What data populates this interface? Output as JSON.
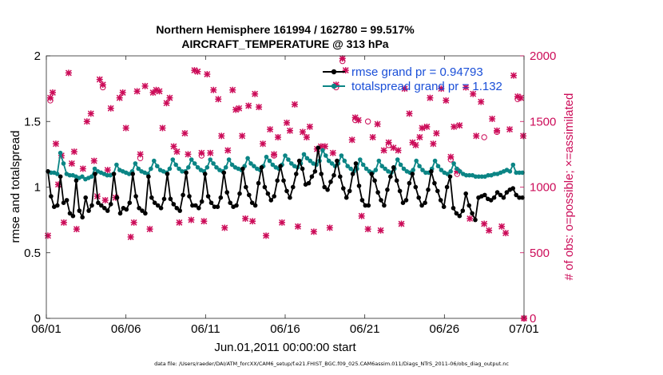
{
  "chart_data": {
    "type": "line",
    "title": "Northern Hemisphere 161994 / 162780 = 99.517%",
    "subtitle": "AIRCRAFT_TEMPERATURE @ 313 hPa",
    "xlabel": "Jun.01,2011 00:00:00 start",
    "ylabel": "rmse and totalspread",
    "y2label": "# of obs: o=possible; ×=assimilated",
    "xlim": [
      0,
      30
    ],
    "ylim": [
      0,
      2
    ],
    "y2lim": [
      0,
      2000
    ],
    "xticks": [
      0,
      5,
      10,
      15,
      20,
      25,
      30
    ],
    "xticklabels": [
      "06/01",
      "06/06",
      "06/11",
      "06/16",
      "06/21",
      "06/26",
      "07/01"
    ],
    "yticks": [
      0,
      0.5,
      1,
      1.5,
      2
    ],
    "yticklabels": [
      "0",
      "0.5",
      "1",
      "1.5",
      "2"
    ],
    "y2ticks": [
      0,
      500,
      1000,
      1500,
      2000
    ],
    "y2ticklabels": [
      "0",
      "500",
      "1000",
      "1500",
      "2000"
    ],
    "colors": {
      "rmse": "#000000",
      "spread": "#0b8585",
      "obs": "#cc0c59",
      "legend_text": "#1a4fd8"
    },
    "series": [
      {
        "name": "rmse grand pr = 0.94793",
        "axis": "left",
        "values": [
          1.12,
          0.93,
          0.85,
          0.86,
          1.08,
          0.88,
          0.9,
          0.8,
          0.78,
          1.05,
          0.82,
          0.77,
          0.92,
          0.82,
          0.86,
          1.1,
          0.88,
          0.86,
          0.84,
          0.82,
          0.87,
          1.1,
          0.92,
          0.8,
          0.84,
          0.83,
          0.88,
          1.1,
          0.93,
          0.84,
          0.82,
          0.8,
          1.08,
          0.92,
          0.88,
          0.86,
          0.84,
          0.91,
          1.1,
          0.91,
          0.87,
          0.84,
          0.82,
          0.94,
          1.11,
          0.93,
          0.86,
          0.86,
          0.84,
          0.89,
          1.1,
          0.93,
          0.88,
          0.85,
          0.85,
          0.92,
          1.11,
          0.96,
          0.88,
          0.85,
          0.86,
          0.95,
          1.14,
          1.0,
          0.94,
          0.88,
          0.86,
          1.03,
          1.15,
          1.0,
          0.95,
          0.9,
          0.93,
          1.05,
          1.16,
          1.05,
          0.97,
          0.92,
          1.0,
          1.1,
          1.2,
          1.14,
          1.02,
          1.03,
          1.08,
          1.12,
          1.3,
          1.1,
          1.0,
          0.98,
          1.04,
          1.09,
          1.2,
          1.08,
          0.99,
          0.92,
          0.97,
          1.1,
          1.18,
          1.01,
          0.9,
          0.86,
          0.86,
          1.1,
          1.05,
          0.96,
          0.9,
          0.86,
          0.98,
          1.08,
          1.15,
          1.05,
          0.97,
          0.88,
          0.9,
          1.03,
          1.1,
          1.0,
          0.92,
          0.86,
          0.88,
          0.98,
          1.12,
          1.03,
          0.97,
          0.9,
          0.85,
          1.0,
          1.08,
          0.84,
          0.8,
          0.78,
          0.82,
          0.95,
          0.86,
          0.8,
          0.75,
          0.92,
          0.93,
          0.94,
          0.91,
          0.9,
          0.92,
          0.96,
          0.94,
          0.92,
          0.96,
          0.98,
          0.99,
          0.94,
          0.92,
          0.92
        ]
      },
      {
        "name": "totalspread grand pr = 1.132",
        "axis": "left",
        "values": [
          1.12,
          1.11,
          1.11,
          1.1,
          1.26,
          1.18,
          1.1,
          1.09,
          1.09,
          1.08,
          1.07,
          1.08,
          1.06,
          1.07,
          1.08,
          1.14,
          1.12,
          1.11,
          1.1,
          1.09,
          1.09,
          1.1,
          1.17,
          1.13,
          1.12,
          1.11,
          1.1,
          1.12,
          1.18,
          1.14,
          1.12,
          1.11,
          1.1,
          1.14,
          1.2,
          1.16,
          1.13,
          1.12,
          1.11,
          1.14,
          1.21,
          1.17,
          1.14,
          1.12,
          1.12,
          1.15,
          1.21,
          1.18,
          1.15,
          1.13,
          1.12,
          1.15,
          1.21,
          1.18,
          1.15,
          1.13,
          1.12,
          1.15,
          1.21,
          1.17,
          1.15,
          1.14,
          1.13,
          1.16,
          1.22,
          1.18,
          1.16,
          1.14,
          1.13,
          1.16,
          1.23,
          1.2,
          1.17,
          1.15,
          1.14,
          1.17,
          1.24,
          1.21,
          1.18,
          1.16,
          1.15,
          1.18,
          1.25,
          1.22,
          1.2,
          1.18,
          1.17,
          1.2,
          1.28,
          1.24,
          1.2,
          1.18,
          1.16,
          1.18,
          1.24,
          1.2,
          1.16,
          1.14,
          1.12,
          1.14,
          1.21,
          1.17,
          1.14,
          1.12,
          1.11,
          1.13,
          1.2,
          1.16,
          1.14,
          1.12,
          1.11,
          1.14,
          1.21,
          1.17,
          1.14,
          1.12,
          1.11,
          1.13,
          1.2,
          1.16,
          1.13,
          1.11,
          1.11,
          1.14,
          1.2,
          1.16,
          1.13,
          1.11,
          1.1,
          1.12,
          1.18,
          1.14,
          1.12,
          1.1,
          1.09,
          1.09,
          1.09,
          1.08,
          1.08,
          1.08,
          1.08,
          1.09,
          1.09,
          1.1,
          1.1,
          1.11,
          1.12,
          1.13,
          1.12,
          1.17,
          1.11,
          1.11,
          1.11
        ]
      }
    ],
    "obs_assimilated": [
      [
        0.1,
        630
      ],
      [
        0.25,
        1680
      ],
      [
        0.4,
        1720
      ],
      [
        0.6,
        1330
      ],
      [
        0.75,
        1020
      ],
      [
        0.95,
        1240
      ],
      [
        1.1,
        730
      ],
      [
        1.4,
        1870
      ],
      [
        1.6,
        1180
      ],
      [
        1.75,
        1270
      ],
      [
        1.9,
        680
      ],
      [
        2.3,
        1140
      ],
      [
        2.55,
        1500
      ],
      [
        2.8,
        1560
      ],
      [
        3.0,
        1200
      ],
      [
        3.2,
        930
      ],
      [
        3.35,
        1820
      ],
      [
        3.55,
        1780
      ],
      [
        3.7,
        900
      ],
      [
        3.85,
        1130
      ],
      [
        4.05,
        1600
      ],
      [
        4.35,
        920
      ],
      [
        4.6,
        1680
      ],
      [
        4.8,
        1720
      ],
      [
        5.0,
        1450
      ],
      [
        5.3,
        620
      ],
      [
        5.5,
        730
      ],
      [
        5.7,
        1730
      ],
      [
        5.9,
        1250
      ],
      [
        6.2,
        1770
      ],
      [
        6.5,
        680
      ],
      [
        6.7,
        1720
      ],
      [
        6.9,
        1740
      ],
      [
        7.1,
        1730
      ],
      [
        7.3,
        1450
      ],
      [
        7.55,
        1640
      ],
      [
        7.75,
        1680
      ],
      [
        8.0,
        1310
      ],
      [
        8.2,
        1270
      ],
      [
        8.35,
        730
      ],
      [
        8.7,
        1410
      ],
      [
        8.9,
        1250
      ],
      [
        9.1,
        750
      ],
      [
        9.3,
        1890
      ],
      [
        9.5,
        1880
      ],
      [
        9.75,
        1260
      ],
      [
        9.9,
        740
      ],
      [
        10.1,
        1860
      ],
      [
        10.3,
        1260
      ],
      [
        10.5,
        1740
      ],
      [
        10.8,
        1670
      ],
      [
        11.0,
        1390
      ],
      [
        11.2,
        690
      ],
      [
        11.4,
        1280
      ],
      [
        11.7,
        1740
      ],
      [
        11.9,
        1590
      ],
      [
        12.1,
        1600
      ],
      [
        12.3,
        1390
      ],
      [
        12.5,
        760
      ],
      [
        12.7,
        1620
      ],
      [
        12.95,
        740
      ],
      [
        13.1,
        1710
      ],
      [
        13.35,
        1610
      ],
      [
        13.6,
        1330
      ],
      [
        13.8,
        630
      ],
      [
        14.05,
        1440
      ],
      [
        14.3,
        1250
      ],
      [
        14.55,
        1380
      ],
      [
        14.8,
        730
      ],
      [
        15.1,
        1490
      ],
      [
        15.3,
        1430
      ],
      [
        15.6,
        1630
      ],
      [
        15.8,
        700
      ],
      [
        16.1,
        1420
      ],
      [
        16.35,
        1380
      ],
      [
        16.55,
        1460
      ],
      [
        16.8,
        660
      ],
      [
        17.0,
        1290
      ],
      [
        17.25,
        1310
      ],
      [
        17.5,
        1310
      ],
      [
        17.8,
        690
      ],
      [
        18.0,
        1260
      ],
      [
        18.2,
        1780
      ],
      [
        18.6,
        1980
      ],
      [
        18.8,
        1890
      ],
      [
        19.2,
        1360
      ],
      [
        19.4,
        1530
      ],
      [
        19.6,
        1510
      ],
      [
        19.8,
        780
      ],
      [
        20.2,
        680
      ],
      [
        20.5,
        1380
      ],
      [
        20.8,
        1480
      ],
      [
        21.0,
        670
      ],
      [
        21.2,
        1280
      ],
      [
        21.5,
        1340
      ],
      [
        21.8,
        1300
      ],
      [
        22.1,
        1280
      ],
      [
        22.3,
        720
      ],
      [
        22.5,
        1750
      ],
      [
        22.8,
        1560
      ],
      [
        23.0,
        1340
      ],
      [
        23.2,
        1320
      ],
      [
        23.45,
        1380
      ],
      [
        23.6,
        1450
      ],
      [
        23.9,
        1460
      ],
      [
        24.1,
        1680
      ],
      [
        24.3,
        1330
      ],
      [
        24.5,
        1410
      ],
      [
        24.8,
        1750
      ],
      [
        25.1,
        1660
      ],
      [
        25.4,
        1230
      ],
      [
        25.6,
        1460
      ],
      [
        25.8,
        1120
      ],
      [
        25.95,
        1470
      ],
      [
        26.35,
        1760
      ],
      [
        26.6,
        760
      ],
      [
        26.8,
        1710
      ],
      [
        27.0,
        1390
      ],
      [
        27.3,
        1650
      ],
      [
        27.5,
        720
      ],
      [
        27.8,
        670
      ],
      [
        28.0,
        1520
      ],
      [
        28.3,
        1430
      ],
      [
        28.6,
        700
      ],
      [
        28.85,
        650
      ],
      [
        29.1,
        1440
      ],
      [
        29.35,
        1850
      ],
      [
        29.6,
        1690
      ],
      [
        29.8,
        1680
      ],
      [
        29.95,
        1390
      ],
      [
        30.0,
        0
      ]
    ],
    "obs_possible": [
      [
        0.25,
        1660
      ],
      [
        3.55,
        1760
      ],
      [
        5.9,
        1220
      ],
      [
        9.75,
        1240
      ],
      [
        14.3,
        1240
      ],
      [
        18.2,
        1760
      ],
      [
        18.6,
        1960
      ],
      [
        19.4,
        1510
      ],
      [
        20.2,
        1500
      ],
      [
        21.5,
        1320
      ],
      [
        25.4,
        1210
      ],
      [
        25.8,
        1100
      ],
      [
        27.5,
        1380
      ],
      [
        28.3,
        1420
      ],
      [
        29.6,
        1670
      ],
      [
        30.0,
        0
      ]
    ],
    "legend": [
      {
        "label": "rmse grand pr = 0.94793",
        "series": "rmse"
      },
      {
        "label": "totalspread grand pr = 1.132",
        "series": "spread"
      }
    ],
    "legend_location": "top-right",
    "footnote": "data file: /Users/raeder/DAI/ATM_forcXX/CAM6_setup/f.e21.FHIST_BGC.f09_025.CAM6assim.011/Diags_NTrS_2011-06/obs_diag_output.nc"
  }
}
